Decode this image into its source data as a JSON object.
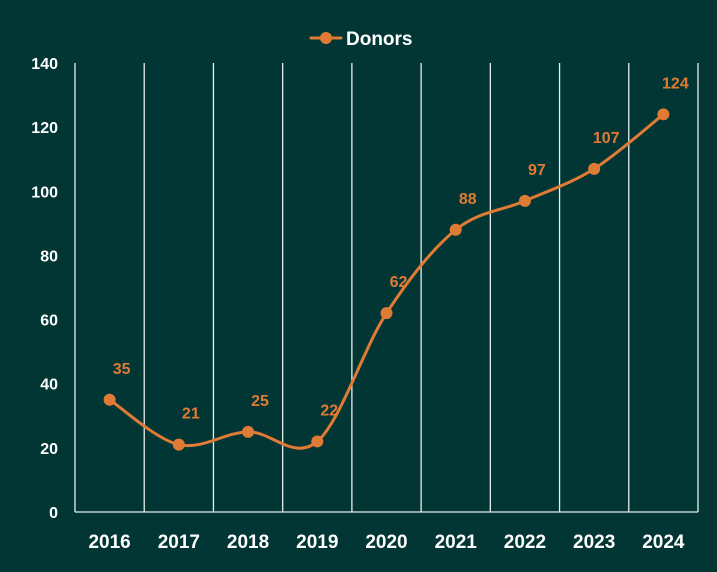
{
  "chart_data": {
    "type": "line",
    "title": "",
    "xlabel": "",
    "ylabel": "",
    "categories": [
      "2016",
      "2017",
      "2018",
      "2019",
      "2020",
      "2021",
      "2022",
      "2023",
      "2024"
    ],
    "series": [
      {
        "name": "Donors",
        "values": [
          35,
          21,
          25,
          22,
          62,
          88,
          97,
          107,
          124
        ]
      }
    ],
    "ylim": [
      0,
      140
    ],
    "yticks": [
      0,
      20,
      40,
      60,
      80,
      100,
      120,
      140
    ],
    "grid": "vertical",
    "legend": "top-center",
    "data_labels": true
  },
  "colors": {
    "background": "#023634",
    "series": "#E07B36",
    "gridline": "#E6EEEC",
    "text": "#FFFFFF"
  }
}
